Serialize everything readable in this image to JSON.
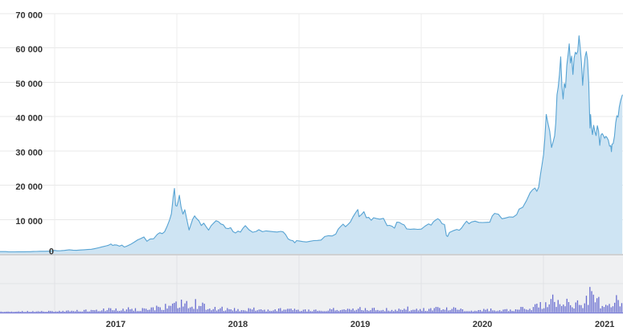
{
  "colors": {
    "background": "#ffffff",
    "price_line": "#57a3d3",
    "price_fill": "#cee4f3",
    "grid_h": "#e8e8e8",
    "grid_v": "#ececec",
    "grid_v_panel": "#e2e2e6",
    "vol_panel_bg": "#eff0f2",
    "vol_grid": "#e2e3e6",
    "vol_bar": "#666bd0",
    "vol_baseline": "#7f83d9",
    "separator": "#c6c8cb",
    "tick_text": "#333333"
  },
  "chart_data": {
    "type": "area",
    "description": "price area chart with volume bar sub-panel",
    "grid": true,
    "legend": "none",
    "x_axis": {
      "min": 2016.553,
      "max": 2021.65,
      "gridlines": [
        2017,
        2018,
        2019,
        2020,
        2021
      ],
      "tick_labels": [
        {
          "t": 2017.5,
          "label": "2017"
        },
        {
          "t": 2018.5,
          "label": "2018"
        },
        {
          "t": 2019.5,
          "label": "2019"
        },
        {
          "t": 2020.5,
          "label": "2020"
        },
        {
          "t": 2021.5,
          "label": "2021"
        }
      ]
    },
    "y_axis": {
      "min": 0,
      "max": 70000,
      "ticks": [
        {
          "v": 70000,
          "label": "70 000"
        },
        {
          "v": 60000,
          "label": "60 000"
        },
        {
          "v": 50000,
          "label": "50 000"
        },
        {
          "v": 40000,
          "label": "40 000"
        },
        {
          "v": 30000,
          "label": "30 000"
        },
        {
          "v": 20000,
          "label": "20 000"
        },
        {
          "v": 10000,
          "label": "10 000"
        },
        {
          "v": 0,
          "label": "0"
        }
      ]
    },
    "noise": {
      "seed": 1337,
      "price_amp": 0.012
    },
    "price_series": {
      "name": "price",
      "unit": "USD",
      "points": [
        [
          2016.553,
          655
        ],
        [
          2016.6,
          665
        ],
        [
          2016.62,
          600
        ],
        [
          2016.65,
          580
        ],
        [
          2016.7,
          605
        ],
        [
          2016.75,
          610
        ],
        [
          2016.8,
          635
        ],
        [
          2016.85,
          705
        ],
        [
          2016.88,
          740
        ],
        [
          2016.92,
          745
        ],
        [
          2016.96,
          790
        ],
        [
          2017.0,
          995
        ],
        [
          2017.02,
          890
        ],
        [
          2017.05,
          905
        ],
        [
          2017.08,
          1010
        ],
        [
          2017.12,
          1190
        ],
        [
          2017.15,
          1075
        ],
        [
          2017.18,
          1040
        ],
        [
          2017.21,
          1120
        ],
        [
          2017.24,
          1190
        ],
        [
          2017.27,
          1260
        ],
        [
          2017.3,
          1330
        ],
        [
          2017.33,
          1550
        ],
        [
          2017.36,
          1790
        ],
        [
          2017.39,
          2050
        ],
        [
          2017.42,
          2320
        ],
        [
          2017.44,
          2500
        ],
        [
          2017.46,
          2870
        ],
        [
          2017.475,
          2450
        ],
        [
          2017.49,
          2620
        ],
        [
          2017.51,
          2550
        ],
        [
          2017.53,
          2250
        ],
        [
          2017.55,
          2550
        ],
        [
          2017.57,
          2000
        ],
        [
          2017.59,
          2250
        ],
        [
          2017.62,
          2750
        ],
        [
          2017.65,
          3390
        ],
        [
          2017.68,
          4090
        ],
        [
          2017.7,
          4380
        ],
        [
          2017.73,
          4920
        ],
        [
          2017.755,
          3680
        ],
        [
          2017.78,
          4300
        ],
        [
          2017.81,
          4400
        ],
        [
          2017.84,
          5680
        ],
        [
          2017.86,
          6150
        ],
        [
          2017.88,
          5900
        ],
        [
          2017.9,
          6450
        ],
        [
          2017.92,
          8050
        ],
        [
          2017.94,
          9850
        ],
        [
          2017.955,
          11650
        ],
        [
          2017.97,
          16700
        ],
        [
          2017.98,
          19090
        ],
        [
          2017.99,
          14100
        ],
        [
          2018.0,
          13900
        ],
        [
          2018.01,
          15150
        ],
        [
          2018.02,
          17080
        ],
        [
          2018.035,
          13600
        ],
        [
          2018.05,
          11600
        ],
        [
          2018.065,
          12850
        ],
        [
          2018.08,
          10250
        ],
        [
          2018.1,
          6950
        ],
        [
          2018.115,
          8570
        ],
        [
          2018.13,
          10150
        ],
        [
          2018.145,
          11070
        ],
        [
          2018.16,
          10350
        ],
        [
          2018.18,
          9650
        ],
        [
          2018.2,
          8270
        ],
        [
          2018.22,
          8950
        ],
        [
          2018.24,
          7890
        ],
        [
          2018.26,
          6940
        ],
        [
          2018.28,
          8200
        ],
        [
          2018.3,
          8920
        ],
        [
          2018.32,
          9650
        ],
        [
          2018.34,
          9380
        ],
        [
          2018.36,
          8720
        ],
        [
          2018.38,
          8480
        ],
        [
          2018.4,
          7500
        ],
        [
          2018.42,
          7360
        ],
        [
          2018.44,
          7640
        ],
        [
          2018.46,
          6450
        ],
        [
          2018.48,
          6080
        ],
        [
          2018.5,
          6620
        ],
        [
          2018.52,
          6350
        ],
        [
          2018.54,
          7410
        ],
        [
          2018.56,
          8220
        ],
        [
          2018.59,
          7030
        ],
        [
          2018.62,
          6300
        ],
        [
          2018.65,
          6550
        ],
        [
          2018.67,
          7050
        ],
        [
          2018.7,
          6450
        ],
        [
          2018.73,
          6700
        ],
        [
          2018.76,
          6590
        ],
        [
          2018.79,
          6470
        ],
        [
          2018.82,
          6370
        ],
        [
          2018.85,
          6550
        ],
        [
          2018.87,
          6390
        ],
        [
          2018.89,
          5620
        ],
        [
          2018.91,
          4360
        ],
        [
          2018.93,
          3970
        ],
        [
          2018.95,
          3820
        ],
        [
          2018.965,
          3220
        ],
        [
          2018.98,
          3860
        ],
        [
          2019.0,
          3770
        ],
        [
          2019.03,
          3590
        ],
        [
          2019.06,
          3460
        ],
        [
          2019.09,
          3670
        ],
        [
          2019.12,
          3860
        ],
        [
          2019.15,
          3920
        ],
        [
          2019.18,
          4030
        ],
        [
          2019.21,
          5060
        ],
        [
          2019.24,
          5290
        ],
        [
          2019.27,
          5230
        ],
        [
          2019.3,
          5750
        ],
        [
          2019.32,
          7220
        ],
        [
          2019.34,
          7990
        ],
        [
          2019.36,
          8670
        ],
        [
          2019.38,
          7920
        ],
        [
          2019.4,
          8560
        ],
        [
          2019.42,
          9320
        ],
        [
          2019.44,
          10750
        ],
        [
          2019.46,
          11880
        ],
        [
          2019.48,
          12920
        ],
        [
          2019.49,
          10850
        ],
        [
          2019.51,
          11450
        ],
        [
          2019.53,
          12280
        ],
        [
          2019.55,
          10550
        ],
        [
          2019.57,
          10620
        ],
        [
          2019.59,
          9790
        ],
        [
          2019.61,
          10540
        ],
        [
          2019.63,
          10330
        ],
        [
          2019.66,
          10120
        ],
        [
          2019.69,
          10350
        ],
        [
          2019.72,
          8250
        ],
        [
          2019.74,
          8320
        ],
        [
          2019.76,
          8060
        ],
        [
          2019.78,
          7480
        ],
        [
          2019.8,
          9250
        ],
        [
          2019.82,
          9180
        ],
        [
          2019.84,
          8740
        ],
        [
          2019.86,
          8420
        ],
        [
          2019.88,
          7290
        ],
        [
          2019.91,
          7160
        ],
        [
          2019.94,
          7240
        ],
        [
          2019.97,
          7150
        ],
        [
          2020.0,
          7220
        ],
        [
          2020.03,
          8080
        ],
        [
          2020.06,
          8730
        ],
        [
          2020.08,
          8390
        ],
        [
          2020.1,
          9380
        ],
        [
          2020.12,
          9920
        ],
        [
          2020.135,
          10230
        ],
        [
          2020.15,
          9890
        ],
        [
          2020.17,
          8790
        ],
        [
          2020.19,
          8550
        ],
        [
          2020.205,
          5350
        ],
        [
          2020.215,
          5060
        ],
        [
          2020.23,
          6230
        ],
        [
          2020.26,
          6740
        ],
        [
          2020.29,
          7120
        ],
        [
          2020.31,
          6890
        ],
        [
          2020.33,
          7560
        ],
        [
          2020.35,
          8620
        ],
        [
          2020.37,
          9540
        ],
        [
          2020.39,
          8770
        ],
        [
          2020.41,
          9290
        ],
        [
          2020.44,
          9520
        ],
        [
          2020.47,
          9180
        ],
        [
          2020.5,
          9130
        ],
        [
          2020.53,
          9180
        ],
        [
          2020.56,
          9230
        ],
        [
          2020.58,
          11030
        ],
        [
          2020.6,
          11810
        ],
        [
          2020.63,
          11560
        ],
        [
          2020.66,
          10240
        ],
        [
          2020.69,
          10470
        ],
        [
          2020.72,
          10760
        ],
        [
          2020.75,
          10690
        ],
        [
          2020.78,
          11420
        ],
        [
          2020.8,
          13060
        ],
        [
          2020.83,
          13570
        ],
        [
          2020.86,
          15510
        ],
        [
          2020.89,
          17800
        ],
        [
          2020.91,
          18680
        ],
        [
          2020.93,
          19170
        ],
        [
          2020.945,
          18220
        ],
        [
          2020.96,
          19420
        ],
        [
          2020.975,
          23240
        ],
        [
          2020.99,
          26500
        ],
        [
          2021.0,
          29010
        ],
        [
          2021.01,
          33500
        ],
        [
          2021.022,
          40650
        ],
        [
          2021.035,
          38200
        ],
        [
          2021.05,
          35800
        ],
        [
          2021.065,
          31000
        ],
        [
          2021.08,
          32850
        ],
        [
          2021.09,
          34320
        ],
        [
          2021.1,
          38290
        ],
        [
          2021.11,
          46370
        ],
        [
          2021.12,
          48600
        ],
        [
          2021.13,
          52150
        ],
        [
          2021.14,
          57410
        ],
        [
          2021.15,
          48900
        ],
        [
          2021.16,
          45140
        ],
        [
          2021.17,
          49650
        ],
        [
          2021.18,
          48420
        ],
        [
          2021.19,
          54920
        ],
        [
          2021.2,
          57820
        ],
        [
          2021.21,
          61200
        ],
        [
          2021.22,
          55650
        ],
        [
          2021.23,
          57650
        ],
        [
          2021.24,
          52270
        ],
        [
          2021.25,
          57080
        ],
        [
          2021.26,
          58760
        ],
        [
          2021.27,
          58230
        ],
        [
          2021.28,
          59050
        ],
        [
          2021.29,
          63540
        ],
        [
          2021.3,
          60050
        ],
        [
          2021.31,
          55870
        ],
        [
          2021.32,
          49120
        ],
        [
          2021.33,
          54020
        ],
        [
          2021.34,
          57480
        ],
        [
          2021.35,
          58950
        ],
        [
          2021.36,
          56420
        ],
        [
          2021.37,
          49710
        ],
        [
          2021.375,
          42860
        ],
        [
          2021.38,
          36690
        ],
        [
          2021.385,
          40600
        ],
        [
          2021.39,
          37340
        ],
        [
          2021.4,
          34770
        ],
        [
          2021.41,
          37450
        ],
        [
          2021.42,
          35640
        ],
        [
          2021.43,
          34450
        ],
        [
          2021.44,
          37340
        ],
        [
          2021.45,
          35840
        ],
        [
          2021.46,
          31620
        ],
        [
          2021.47,
          34650
        ],
        [
          2021.48,
          35040
        ],
        [
          2021.49,
          34430
        ],
        [
          2021.5,
          33680
        ],
        [
          2021.51,
          34240
        ],
        [
          2021.52,
          33820
        ],
        [
          2021.53,
          33100
        ],
        [
          2021.54,
          31400
        ],
        [
          2021.55,
          31520
        ],
        [
          2021.555,
          29790
        ],
        [
          2021.56,
          31950
        ],
        [
          2021.57,
          32140
        ],
        [
          2021.58,
          34290
        ],
        [
          2021.59,
          38180
        ],
        [
          2021.6,
          40250
        ],
        [
          2021.61,
          39850
        ],
        [
          2021.62,
          42820
        ],
        [
          2021.63,
          44650
        ],
        [
          2021.645,
          46280
        ]
      ]
    },
    "volume_series": {
      "name": "volume",
      "unit": "relative",
      "axis_labels": "none",
      "envelope": [
        [
          2016.553,
          1.5
        ],
        [
          2017.1,
          2.5
        ],
        [
          2017.45,
          7
        ],
        [
          2017.6,
          5.5
        ],
        [
          2017.8,
          8
        ],
        [
          2017.92,
          14
        ],
        [
          2017.96,
          34
        ],
        [
          2018.0,
          22
        ],
        [
          2018.05,
          20
        ],
        [
          2018.1,
          16
        ],
        [
          2018.15,
          20
        ],
        [
          2018.25,
          12
        ],
        [
          2018.4,
          7
        ],
        [
          2018.6,
          5.5
        ],
        [
          2018.75,
          4.5
        ],
        [
          2018.88,
          9
        ],
        [
          2019.0,
          5
        ],
        [
          2019.15,
          4.5
        ],
        [
          2019.3,
          8
        ],
        [
          2019.5,
          10
        ],
        [
          2019.55,
          8
        ],
        [
          2019.7,
          6
        ],
        [
          2019.85,
          7
        ],
        [
          2020.0,
          5.5
        ],
        [
          2020.18,
          11
        ],
        [
          2020.22,
          9
        ],
        [
          2020.4,
          5
        ],
        [
          2020.6,
          6
        ],
        [
          2020.75,
          6.5
        ],
        [
          2020.9,
          10
        ],
        [
          2020.97,
          14
        ],
        [
          2021.02,
          22
        ],
        [
          2021.08,
          26
        ],
        [
          2021.15,
          30
        ],
        [
          2021.22,
          22
        ],
        [
          2021.3,
          20
        ],
        [
          2021.36,
          30
        ],
        [
          2021.375,
          54
        ],
        [
          2021.39,
          34
        ],
        [
          2021.45,
          22
        ],
        [
          2021.52,
          18
        ],
        [
          2021.58,
          26
        ],
        [
          2021.63,
          22
        ]
      ]
    }
  }
}
